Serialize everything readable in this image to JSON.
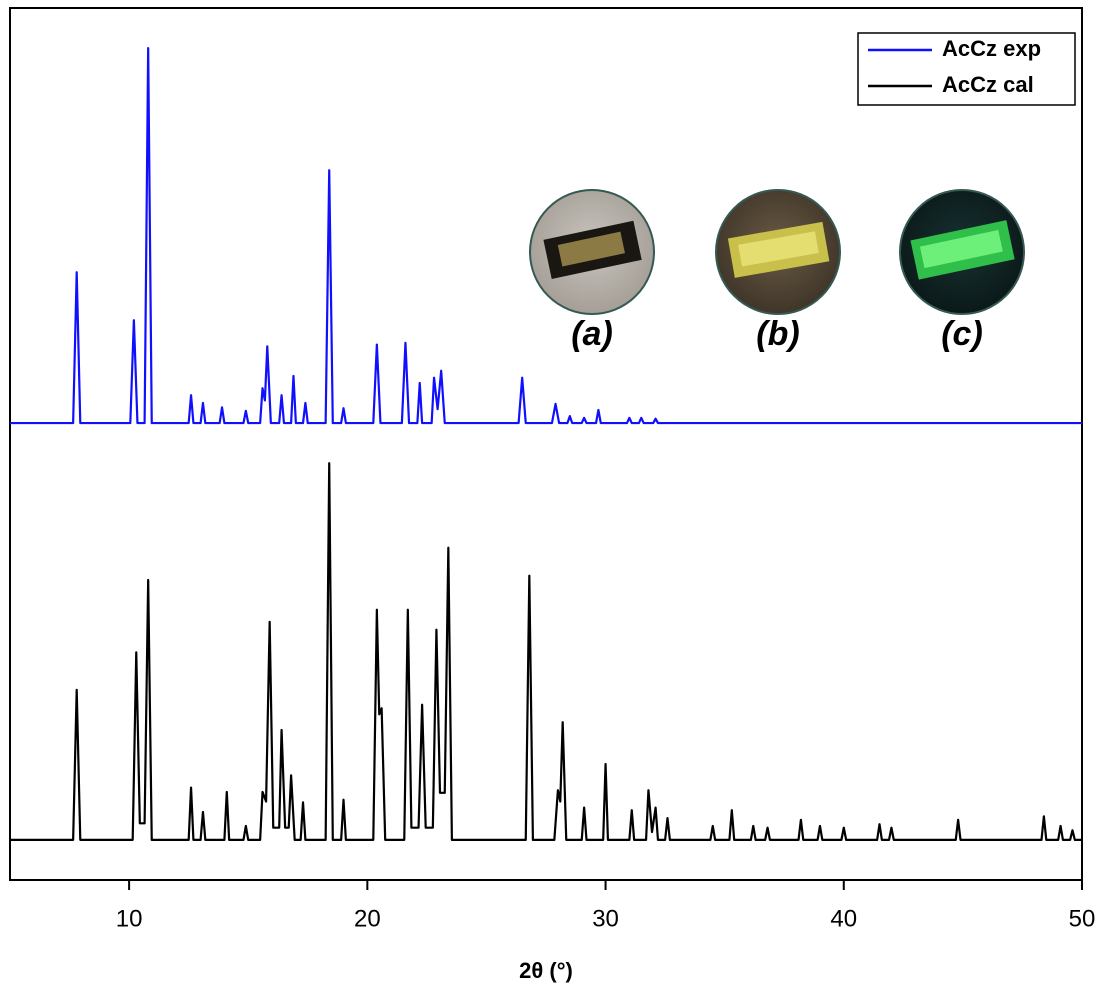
{
  "chart_data": {
    "type": "line",
    "xlabel": "2θ (°)",
    "xlim": [
      5,
      50
    ],
    "xticks": [
      10,
      20,
      30,
      40,
      50
    ],
    "ylim": [
      0,
      100
    ],
    "legend": "upper right",
    "annotations": [
      "(a)",
      "(b)",
      "(c)"
    ],
    "series": [
      {
        "name": "AcCz exp",
        "color": "#1010ff",
        "x": [
          5,
          7.65,
          7.8,
          7.95,
          10.05,
          10.2,
          10.35,
          10.65,
          10.8,
          10.95,
          12.5,
          12.6,
          12.7,
          13.0,
          13.1,
          13.2,
          13.8,
          13.9,
          14.0,
          14.8,
          14.9,
          15.0,
          15.5,
          15.6,
          15.7,
          15.8,
          15.95,
          16.3,
          16.4,
          16.5,
          16.8,
          16.9,
          17.0,
          17.3,
          17.4,
          17.5,
          18.25,
          18.4,
          18.55,
          18.9,
          19.0,
          19.1,
          20.25,
          20.4,
          20.55,
          21.45,
          21.6,
          21.75,
          22.1,
          22.2,
          22.3,
          22.7,
          22.8,
          22.95,
          23.1,
          23.25,
          26.35,
          26.5,
          26.65,
          27.75,
          27.9,
          28.05,
          28.4,
          28.5,
          28.6,
          29.0,
          29.1,
          29.2,
          29.6,
          29.7,
          29.8,
          30.9,
          31.0,
          31.1,
          31.4,
          31.5,
          31.6,
          32.0,
          32.1,
          32.2,
          50
        ],
        "values": [
          52.4,
          52.4,
          69.7,
          52.4,
          52.4,
          64.2,
          52.4,
          52.4,
          95.4,
          52.4,
          52.4,
          55.6,
          52.4,
          52.4,
          54.7,
          52.4,
          52.4,
          54.2,
          52.4,
          52.4,
          53.8,
          52.4,
          52.4,
          56.4,
          55.0,
          61.2,
          52.4,
          52.4,
          55.6,
          52.4,
          52.4,
          57.8,
          52.4,
          52.4,
          54.7,
          52.4,
          52.4,
          81.4,
          52.4,
          52.4,
          54.1,
          52.4,
          52.4,
          61.4,
          52.4,
          52.4,
          61.6,
          52.4,
          52.4,
          57.0,
          52.4,
          52.4,
          57.6,
          54.0,
          58.4,
          52.4,
          52.4,
          57.6,
          52.4,
          52.4,
          54.6,
          52.4,
          52.4,
          53.2,
          52.4,
          52.4,
          53.0,
          52.4,
          52.4,
          53.9,
          52.4,
          52.4,
          53.0,
          52.4,
          52.4,
          53.0,
          52.4,
          52.4,
          52.9,
          52.4,
          52.4
        ]
      },
      {
        "name": "AcCz cal",
        "color": "#000000",
        "x": [
          5,
          7.65,
          7.8,
          7.95,
          10.15,
          10.3,
          10.45,
          10.65,
          10.8,
          10.95,
          12.5,
          12.6,
          12.7,
          13.0,
          13.1,
          13.2,
          14.0,
          14.1,
          14.2,
          14.8,
          14.9,
          15.0,
          15.5,
          15.6,
          15.75,
          15.9,
          16.05,
          16.3,
          16.4,
          16.55,
          16.7,
          16.8,
          16.95,
          17.2,
          17.3,
          17.4,
          18.25,
          18.4,
          18.55,
          18.9,
          19.0,
          19.1,
          20.25,
          20.4,
          20.5,
          20.6,
          20.75,
          21.55,
          21.7,
          21.85,
          22.15,
          22.3,
          22.45,
          22.75,
          22.9,
          23.05,
          23.25,
          23.4,
          23.55,
          26.65,
          26.8,
          26.95,
          27.85,
          28.0,
          28.1,
          28.2,
          28.35,
          29.0,
          29.1,
          29.2,
          29.9,
          30.0,
          30.1,
          31.0,
          31.1,
          31.2,
          31.7,
          31.8,
          31.95,
          32.1,
          32.2,
          32.5,
          32.6,
          32.7,
          34.4,
          34.5,
          34.6,
          35.2,
          35.3,
          35.4,
          36.1,
          36.2,
          36.3,
          36.7,
          36.8,
          36.9,
          38.1,
          38.2,
          38.3,
          38.9,
          39.0,
          39.1,
          39.9,
          40.0,
          40.1,
          41.4,
          41.5,
          41.6,
          41.9,
          42.0,
          42.1,
          44.7,
          44.8,
          44.9,
          48.3,
          48.4,
          48.5,
          49.0,
          49.1,
          49.2,
          49.5,
          49.6,
          49.7,
          50
        ],
        "values": [
          4.6,
          4.6,
          21.8,
          4.6,
          4.6,
          26.1,
          6.5,
          6.5,
          34.4,
          4.6,
          4.6,
          10.6,
          4.6,
          4.6,
          7.8,
          4.6,
          4.6,
          10.1,
          4.6,
          4.6,
          6.2,
          4.6,
          4.6,
          10.1,
          9.0,
          29.6,
          6.0,
          6.0,
          17.2,
          6.0,
          6.0,
          12.0,
          4.6,
          4.6,
          8.9,
          4.6,
          4.6,
          47.8,
          4.6,
          4.6,
          9.2,
          4.6,
          4.6,
          31.0,
          19.0,
          19.7,
          4.6,
          4.6,
          31.0,
          6.0,
          6.0,
          20.1,
          6.0,
          6.0,
          28.7,
          10.0,
          10.0,
          38.1,
          4.6,
          4.6,
          34.9,
          4.6,
          4.6,
          10.3,
          9.0,
          18.1,
          4.6,
          4.6,
          8.3,
          4.6,
          4.6,
          13.3,
          4.6,
          4.6,
          8.0,
          4.6,
          4.6,
          10.3,
          5.5,
          8.3,
          4.6,
          4.6,
          7.1,
          4.6,
          4.6,
          6.2,
          4.6,
          4.6,
          8.0,
          4.6,
          4.6,
          6.2,
          4.6,
          4.6,
          6.0,
          4.6,
          4.6,
          6.9,
          4.6,
          4.6,
          6.2,
          4.6,
          4.6,
          6.0,
          4.6,
          4.6,
          6.4,
          4.6,
          4.6,
          6.0,
          4.6,
          4.6,
          6.9,
          4.6,
          4.6,
          7.3,
          4.6,
          4.6,
          6.2,
          4.6,
          4.6,
          5.7,
          4.6,
          4.6
        ]
      }
    ]
  }
}
